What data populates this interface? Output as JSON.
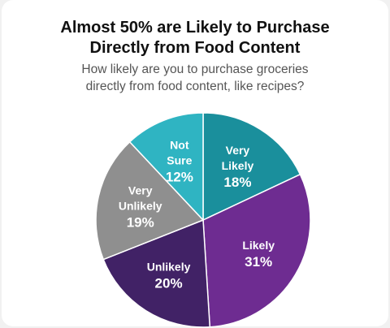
{
  "chart_data": {
    "type": "pie",
    "title": [
      "Almost 50% are Likely to Purchase",
      "Directly from Food Content"
    ],
    "subtitle": [
      "How likely are you to purchase groceries",
      "directly from food content, like recipes?"
    ],
    "slices": [
      {
        "label": [
          "Very",
          "Likely"
        ],
        "value": 18,
        "value_label": "18%",
        "color": "#1a8f9c"
      },
      {
        "label": [
          "Likely"
        ],
        "value": 31,
        "value_label": "31%",
        "color": "#6e2c91"
      },
      {
        "label": [
          "Unlikely"
        ],
        "value": 20,
        "value_label": "20%",
        "color": "#412266"
      },
      {
        "label": [
          "Very",
          "Unlikely"
        ],
        "value": 19,
        "value_label": "19%",
        "color": "#8f8f8f"
      },
      {
        "label": [
          "Not",
          "Sure"
        ],
        "value": 12,
        "value_label": "12%",
        "color": "#2fb4c2"
      }
    ],
    "start_angle": "top",
    "direction": "clockwise"
  }
}
